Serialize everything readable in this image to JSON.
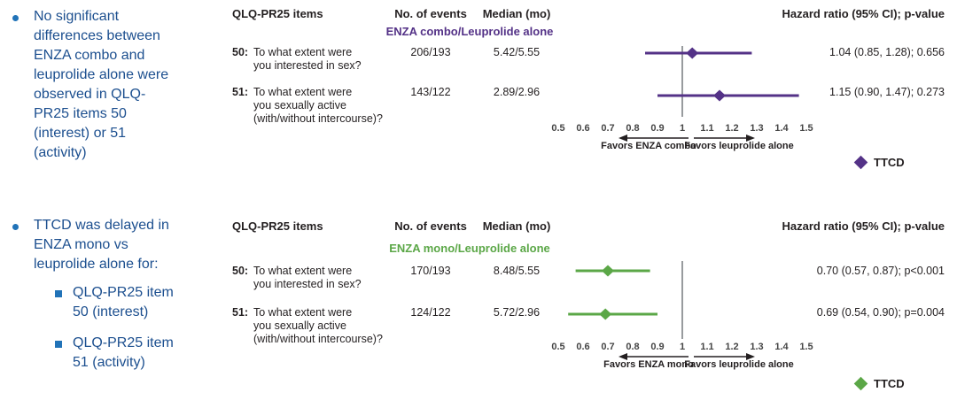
{
  "colors": {
    "bullet_text": "#1C4F8F",
    "bullet_marker": "#2173B8",
    "accent_purple": "#543287",
    "accent_green": "#5BA747",
    "reference_line": "#7F8285",
    "table_text": "#231F20"
  },
  "bullets": [
    {
      "text": "No significant\ndifferences between\nENZA combo and\nleuprolide alone were\nobserved in QLQ-\nPR25 items 50\n(interest) or 51\n(activity)"
    },
    {
      "text": "TTCD was delayed in\nENZA mono vs\nleuprolide alone for:",
      "sub": [
        "QLQ-PR25 item\n50 (interest)",
        "QLQ-PR25 item\n51 (activity)"
      ]
    }
  ],
  "panels": [
    {
      "headers": {
        "items": "QLQ-PR25 items",
        "events": "No. of events",
        "median": "Median (mo)",
        "hazard": "Hazard ratio (95% CI); p-value"
      },
      "subtitle": "ENZA combo/Leuprolide alone",
      "rows": [
        {
          "num": "50:",
          "line1": "To what extent were",
          "line2": "you interested in sex?",
          "line3": "",
          "events": "206/193",
          "median": "5.42/5.55",
          "hr_text": "1.04 (0.85, 1.28); 0.656"
        },
        {
          "num": "51:",
          "line1": "To what extent were",
          "line2": "you sexually active",
          "line3": "(with/without intercourse)?",
          "events": "143/122",
          "median": "2.89/2.96",
          "hr_text": "1.15 (0.90, 1.47); 0.273"
        }
      ],
      "legend_label": "TTCD"
    },
    {
      "headers": {
        "items": "QLQ-PR25 items",
        "events": "No. of events",
        "median": "Median (mo)",
        "hazard": "Hazard ratio (95% CI); p-value"
      },
      "subtitle": "ENZA mono/Leuprolide alone",
      "rows": [
        {
          "num": "50:",
          "line1": "To what extent were",
          "line2": "you interested in sex?",
          "line3": "",
          "events": "170/193",
          "median": "8.48/5.55",
          "hr_text": "0.70 (0.57, 0.87); p<0.001"
        },
        {
          "num": "51:",
          "line1": "To what extent were",
          "line2": "you sexually active",
          "line3": "(with/without intercourse)?",
          "events": "124/122",
          "median": "5.72/2.96",
          "hr_text": "0.69 (0.54, 0.90); p=0.004"
        }
      ],
      "legend_label": "TTCD"
    }
  ],
  "chart_data": [
    {
      "type": "scatter",
      "variant": "forest-plot",
      "title": "ENZA combo/Leuprolide alone",
      "color": "#543287",
      "xlim": [
        0.5,
        1.5
      ],
      "ref_line": 1,
      "x_ticks": [
        "0.5",
        "0.6",
        "0.7",
        "0.8",
        "0.9",
        "1",
        "1.1",
        "1.2",
        "1.3",
        "1.4",
        "1.5"
      ],
      "favors_left": "Favors ENZA combo",
      "favors_right": "Favors leuprolide alone",
      "series": [
        {
          "name": "TTCD",
          "points": [
            {
              "label": "QLQ-PR25 item 50 (interest)",
              "hr": 1.04,
              "ci_low": 0.85,
              "ci_high": 1.28,
              "p_value": "0.656",
              "events": "206/193",
              "median_mo": "5.42/5.55"
            },
            {
              "label": "QLQ-PR25 item 51 (activity)",
              "hr": 1.15,
              "ci_low": 0.9,
              "ci_high": 1.47,
              "p_value": "0.273",
              "events": "143/122",
              "median_mo": "2.89/2.96"
            }
          ]
        }
      ]
    },
    {
      "type": "scatter",
      "variant": "forest-plot",
      "title": "ENZA mono/Leuprolide alone",
      "color": "#5BA747",
      "xlim": [
        0.5,
        1.5
      ],
      "ref_line": 1,
      "x_ticks": [
        "0.5",
        "0.6",
        "0.7",
        "0.8",
        "0.9",
        "1",
        "1.1",
        "1.2",
        "1.3",
        "1.4",
        "1.5"
      ],
      "favors_left": "Favors ENZA mono",
      "favors_right": "Favors leuprolide alone",
      "series": [
        {
          "name": "TTCD",
          "points": [
            {
              "label": "QLQ-PR25 item 50 (interest)",
              "hr": 0.7,
              "ci_low": 0.57,
              "ci_high": 0.87,
              "p_value": "p<0.001",
              "events": "170/193",
              "median_mo": "8.48/5.55"
            },
            {
              "label": "QLQ-PR25 item 51 (activity)",
              "hr": 0.69,
              "ci_low": 0.54,
              "ci_high": 0.9,
              "p_value": "p=0.004",
              "events": "124/122",
              "median_mo": "5.72/2.96"
            }
          ]
        }
      ]
    }
  ]
}
